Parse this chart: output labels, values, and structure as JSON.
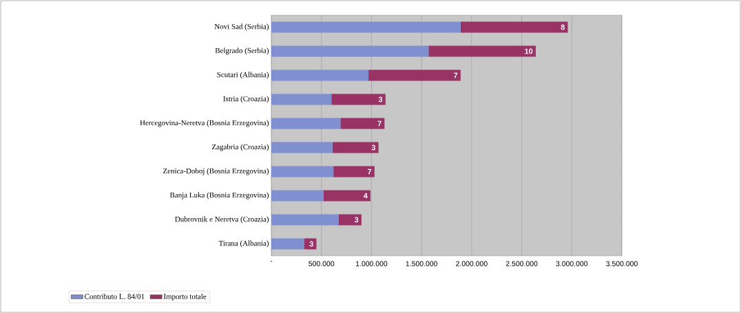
{
  "chart_data": {
    "type": "bar",
    "orientation": "horizontal",
    "stacked": true,
    "categories": [
      "Novi Sad (Serbia)",
      "Belgrado (Serbia)",
      "Scutari (Albania)",
      "Istria (Croazia)",
      "Hercegovina-Neretva (Bosnia Erzegovina)",
      "Zagabria (Croazia)",
      "Zenica-Doboj (Bosnia Erzegovina)",
      "Banja Luka (Bosnia Erzegovina)",
      "Dubrovnik e Neretva (Croazia)",
      "Tirana (Albania)"
    ],
    "series": [
      {
        "name": "Contributo L. 84/01",
        "color": "#7f8fcf",
        "values": [
          1890000,
          1570000,
          970000,
          600000,
          690000,
          610000,
          620000,
          520000,
          670000,
          330000
        ]
      },
      {
        "name": "Importo totale",
        "color": "#993366",
        "values": [
          1070000,
          1070000,
          920000,
          540000,
          440000,
          460000,
          410000,
          470000,
          230000,
          120000
        ]
      }
    ],
    "annotations": [
      {
        "text": "8",
        "x": 2960000,
        "y": "Novi Sad (Serbia)"
      },
      {
        "text": "10",
        "x": 2640000,
        "y": "Belgrado (Serbia)"
      },
      {
        "text": "7",
        "x": 1890000,
        "y": "Scutari (Albania)"
      },
      {
        "text": "3",
        "x": 1140000,
        "y": "Istria (Croazia)"
      },
      {
        "text": "7",
        "x": 1130000,
        "y": "Hercegovina-Neretva (Bosnia Erzegovina)"
      },
      {
        "text": "3",
        "x": 1070000,
        "y": "Zagabria (Croazia)"
      },
      {
        "text": "7",
        "x": 1030000,
        "y": "Zenica-Doboj (Bosnia Erzegovina)"
      },
      {
        "text": "4",
        "x": 990000,
        "y": "Banja Luka (Bosnia Erzegovina)"
      },
      {
        "text": "3",
        "x": 900000,
        "y": "Dubrovnik e Neretva (Croazia)"
      },
      {
        "text": "3",
        "x": 450000,
        "y": "Tirana (Albania)"
      }
    ],
    "xlim": [
      0,
      3500000
    ],
    "xticks": [
      {
        "value": 0,
        "label": "-"
      },
      {
        "value": 500000,
        "label": "500.000"
      },
      {
        "value": 1000000,
        "label": "1.000.000"
      },
      {
        "value": 1500000,
        "label": "1.500.000"
      },
      {
        "value": 2000000,
        "label": "2.000.000"
      },
      {
        "value": 2500000,
        "label": "2.500.000"
      },
      {
        "value": 3000000,
        "label": "3.000.000"
      },
      {
        "value": 3500000,
        "label": "3.500.000"
      }
    ],
    "grid": "x",
    "legend": "bottom left"
  }
}
